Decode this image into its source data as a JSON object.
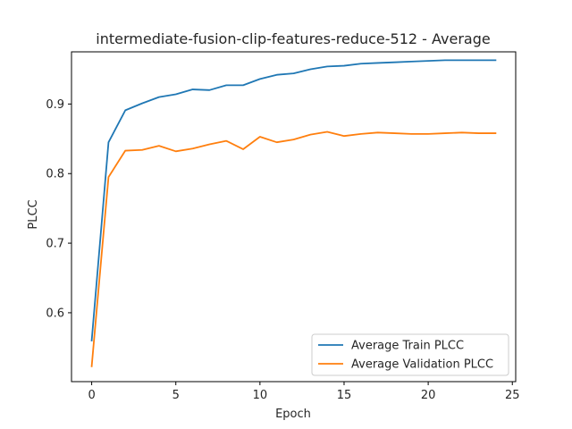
{
  "chart_data": {
    "type": "line",
    "title": "intermediate-fusion-clip-features-reduce-512 - Average",
    "xlabel": "Epoch",
    "ylabel": "PLCC",
    "x": [
      0,
      1,
      2,
      3,
      4,
      5,
      6,
      7,
      8,
      9,
      10,
      11,
      12,
      13,
      14,
      15,
      16,
      17,
      18,
      19,
      20,
      21,
      22,
      23,
      24
    ],
    "xlim": [
      -1.2,
      25.2
    ],
    "ylim": [
      0.501,
      0.975
    ],
    "xticks": [
      0,
      5,
      10,
      15,
      20,
      25
    ],
    "yticks": [
      0.6,
      0.7,
      0.8,
      0.9
    ],
    "series": [
      {
        "name": "Average Train PLCC",
        "color": "#1f77b4",
        "values": [
          0.56,
          0.845,
          0.891,
          0.901,
          0.91,
          0.914,
          0.921,
          0.92,
          0.927,
          0.927,
          0.936,
          0.942,
          0.944,
          0.95,
          0.954,
          0.955,
          0.958,
          0.959,
          0.96,
          0.961,
          0.962,
          0.963,
          0.963,
          0.963,
          0.963
        ]
      },
      {
        "name": "Average Validation PLCC",
        "color": "#ff7f0e",
        "values": [
          0.523,
          0.795,
          0.833,
          0.834,
          0.84,
          0.832,
          0.836,
          0.842,
          0.847,
          0.835,
          0.853,
          0.845,
          0.849,
          0.856,
          0.86,
          0.854,
          0.857,
          0.859,
          0.858,
          0.857,
          0.857,
          0.858,
          0.859,
          0.858,
          0.858
        ]
      }
    ],
    "legend_position": "lower-right",
    "grid": false
  }
}
